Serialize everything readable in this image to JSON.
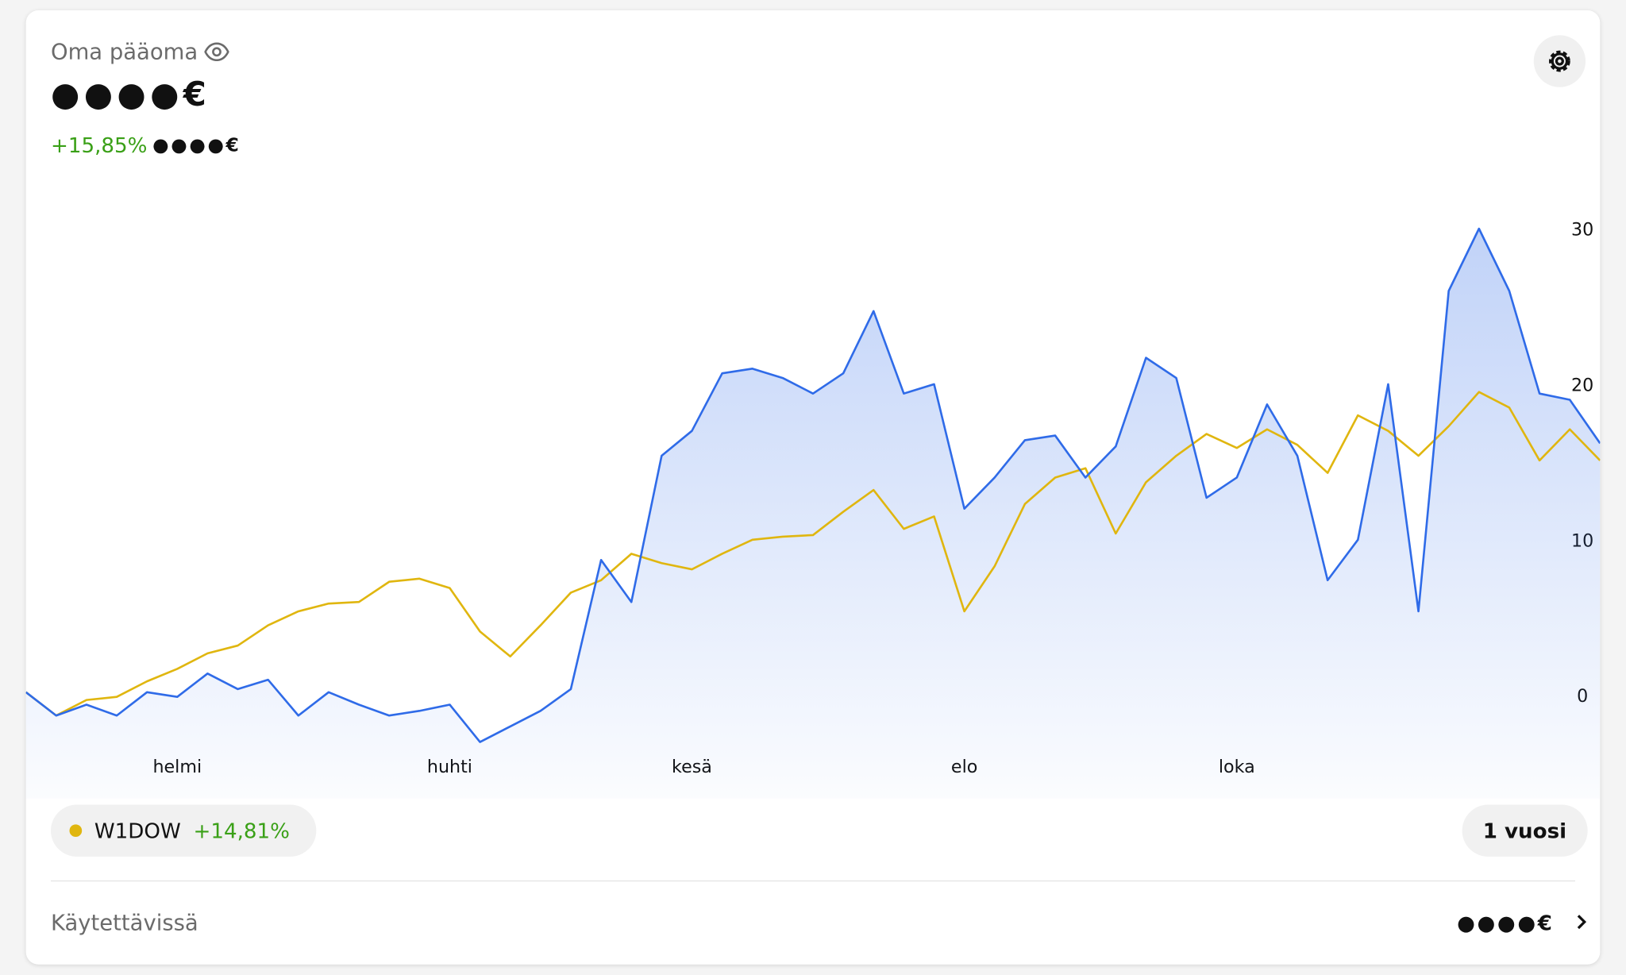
{
  "header": {
    "title": "Oma pääoma",
    "balance": "●●●●€",
    "change_percent": "+15,85%",
    "change_amount": "●●●●€"
  },
  "benchmark_change": "+14,81%",
  "period_button": "1 vuosi",
  "footer": {
    "label": "Käytettävissä",
    "value": "●●●●€"
  },
  "chart_data": {
    "type": "line",
    "categories": [
      null,
      null,
      null,
      null,
      null,
      "helmi",
      null,
      null,
      null,
      null,
      null,
      null,
      null,
      null,
      "huhti",
      null,
      null,
      null,
      null,
      null,
      null,
      null,
      "kesä",
      null,
      null,
      null,
      null,
      null,
      null,
      null,
      null,
      "elo",
      null,
      null,
      null,
      null,
      null,
      null,
      null,
      null,
      "loka",
      null,
      null,
      null,
      null,
      null,
      null,
      null,
      null,
      null,
      null,
      null,
      null
    ],
    "series": [
      {
        "color": "#2f6be8",
        "values": [
          0.3,
          -1.2,
          -0.5,
          -1.2,
          0.3,
          0,
          1.5,
          0.5,
          1.1,
          -1.2,
          0.3,
          -0.5,
          -1.2,
          -0.9,
          -0.5,
          -2.9,
          -1.9,
          -0.9,
          0.5,
          8.8,
          6.1,
          15.5,
          17.1,
          20.8,
          21.1,
          20.5,
          19.5,
          20.8,
          24.8,
          19.5,
          20.1,
          12.1,
          14.1,
          16.5,
          16.8,
          14.1,
          16.1,
          21.8,
          20.5,
          12.8,
          14.1,
          18.8,
          15.5,
          7.5,
          10.1,
          20.1,
          5.5,
          26.1,
          30.1,
          26.1,
          19.5,
          19.1,
          16.3
        ]
      },
      {
        "name": "W1DOW",
        "color": "#e0b60f",
        "values": [
          0.3,
          -1.2,
          -0.2,
          0,
          1,
          1.8,
          2.8,
          3.3,
          4.6,
          5.5,
          6,
          6.1,
          7.4,
          7.6,
          7,
          4.2,
          2.6,
          4.6,
          6.7,
          7.5,
          9.2,
          8.6,
          8.2,
          9.2,
          10.1,
          10.3,
          10.4,
          11.9,
          13.3,
          10.8,
          11.6,
          5.5,
          8.4,
          12.4,
          14.1,
          14.7,
          10.5,
          13.8,
          15.5,
          16.9,
          16,
          17.2,
          16.2,
          14.4,
          18.1,
          17.1,
          15.5,
          17.4,
          19.6,
          18.6,
          15.2,
          17.2,
          15.2
        ]
      }
    ],
    "ylim": [
      -4,
      33
    ],
    "yticks": [
      0,
      10,
      20,
      30
    ],
    "grid": false,
    "area": true
  }
}
